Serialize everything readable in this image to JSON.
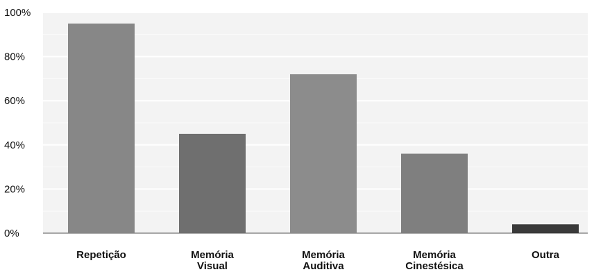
{
  "chart_data": {
    "type": "bar",
    "categories": [
      [
        "Repetição"
      ],
      [
        "Memória",
        "Visual"
      ],
      [
        "Memória",
        "Auditiva"
      ],
      [
        "Memória",
        "Cinestésica"
      ],
      [
        "Outra"
      ]
    ],
    "values": [
      95,
      45,
      72,
      36,
      4
    ],
    "bar_colors": [
      "#878787",
      "#6f6f6f",
      "#8c8c8c",
      "#7f7f7f",
      "#3a3a3a"
    ],
    "ylim": [
      0,
      100
    ],
    "yticks": [
      0,
      20,
      40,
      60,
      80,
      100
    ],
    "ytick_labels": [
      "0%",
      "20%",
      "40%",
      "60%",
      "80%",
      "100%"
    ],
    "grid": true,
    "title": "",
    "xlabel": "",
    "ylabel": ""
  }
}
